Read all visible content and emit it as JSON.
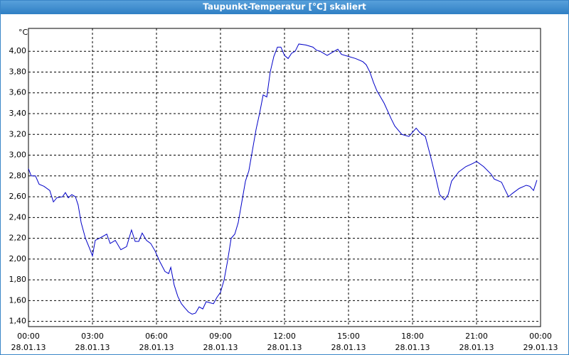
{
  "chart_data": {
    "type": "line",
    "title": "Taupunkt-Temperatur [°C] skaliert",
    "y_unit": "°C",
    "xlim": [
      0,
      24
    ],
    "xticks": [
      {
        "value": 0,
        "label": "00:00"
      },
      {
        "value": 3,
        "label": "03:00"
      },
      {
        "value": 6,
        "label": "06:00"
      },
      {
        "value": 9,
        "label": "09:00"
      },
      {
        "value": 12,
        "label": "12:00"
      },
      {
        "value": 15,
        "label": "15:00"
      },
      {
        "value": 18,
        "label": "18:00"
      },
      {
        "value": 21,
        "label": "21:00"
      },
      {
        "value": 24,
        "label": "00:00"
      }
    ],
    "xtick_dates": [
      "28.01.13",
      "28.01.13",
      "28.01.13",
      "28.01.13",
      "28.01.13",
      "28.01.13",
      "28.01.13",
      "28.01.13",
      "29.01.13"
    ],
    "ylim": [
      1.35,
      4.22
    ],
    "yticks": [
      {
        "value": 1.4,
        "label": "1,40"
      },
      {
        "value": 1.6,
        "label": "1,60"
      },
      {
        "value": 1.8,
        "label": "1,80"
      },
      {
        "value": 2.0,
        "label": "2,00"
      },
      {
        "value": 2.2,
        "label": "2,20"
      },
      {
        "value": 2.4,
        "label": "2,40"
      },
      {
        "value": 2.6,
        "label": "2,60"
      },
      {
        "value": 2.8,
        "label": "2,80"
      },
      {
        "value": 3.0,
        "label": "3,00"
      },
      {
        "value": 3.2,
        "label": "3,20"
      },
      {
        "value": 3.4,
        "label": "3,40"
      },
      {
        "value": 3.6,
        "label": "3,60"
      },
      {
        "value": 3.8,
        "label": "3,80"
      },
      {
        "value": 4.0,
        "label": "4,00"
      }
    ],
    "grid": true,
    "series": [
      {
        "color": "#0000c8",
        "x": [
          0,
          0.13,
          0.33,
          0.5,
          0.73,
          1,
          1.17,
          1.33,
          1.6,
          1.73,
          1.87,
          2.03,
          2.2,
          2.33,
          2.47,
          2.67,
          2.87,
          3,
          3.13,
          3.33,
          3.5,
          3.67,
          3.83,
          4.07,
          4.33,
          4.6,
          4.83,
          5,
          5.17,
          5.33,
          5.53,
          5.73,
          5.93,
          6.17,
          6.4,
          6.57,
          6.67,
          6.83,
          7,
          7.17,
          7.33,
          7.5,
          7.67,
          7.83,
          8,
          8.17,
          8.33,
          8.5,
          8.67,
          8.83,
          9,
          9.17,
          9.33,
          9.5,
          9.67,
          9.83,
          10,
          10.17,
          10.33,
          10.5,
          10.67,
          10.83,
          11,
          11.17,
          11.33,
          11.5,
          11.67,
          11.83,
          12,
          12.17,
          12.33,
          12.5,
          12.67,
          13,
          13.33,
          13.5,
          13.67,
          14,
          14.33,
          14.5,
          14.67,
          15,
          15.33,
          15.67,
          15.83,
          16,
          16.17,
          16.33,
          16.67,
          17,
          17.17,
          17.5,
          17.83,
          18,
          18.17,
          18.33,
          18.6,
          18.83,
          19.07,
          19.27,
          19.5,
          19.67,
          19.83,
          20.17,
          20.5,
          20.83,
          21,
          21.33,
          21.67,
          21.83,
          22.17,
          22.33,
          22.5,
          22.67,
          23,
          23.33,
          23.5,
          23.67,
          23.83
        ],
        "values": [
          2.87,
          2.8,
          2.8,
          2.72,
          2.7,
          2.66,
          2.55,
          2.59,
          2.6,
          2.64,
          2.59,
          2.62,
          2.6,
          2.52,
          2.35,
          2.2,
          2.1,
          2.03,
          2.18,
          2.2,
          2.22,
          2.24,
          2.15,
          2.18,
          2.09,
          2.12,
          2.28,
          2.17,
          2.17,
          2.25,
          2.18,
          2.15,
          2.08,
          1.97,
          1.88,
          1.86,
          1.92,
          1.75,
          1.64,
          1.57,
          1.53,
          1.49,
          1.47,
          1.48,
          1.54,
          1.52,
          1.59,
          1.58,
          1.57,
          1.63,
          1.68,
          1.8,
          1.98,
          2.2,
          2.24,
          2.35,
          2.55,
          2.75,
          2.85,
          3.05,
          3.25,
          3.4,
          3.58,
          3.56,
          3.8,
          3.95,
          4.04,
          4.04,
          3.96,
          3.93,
          3.98,
          4.0,
          4.07,
          4.06,
          4.04,
          4.01,
          4.0,
          3.96,
          4.0,
          4.02,
          3.97,
          3.95,
          3.93,
          3.9,
          3.87,
          3.8,
          3.7,
          3.62,
          3.5,
          3.35,
          3.28,
          3.2,
          3.18,
          3.22,
          3.26,
          3.22,
          3.18,
          3.0,
          2.8,
          2.62,
          2.57,
          2.62,
          2.75,
          2.84,
          2.89,
          2.92,
          2.94,
          2.89,
          2.82,
          2.77,
          2.74,
          2.67,
          2.6,
          2.63,
          2.68,
          2.71,
          2.7,
          2.66,
          2.76
        ]
      }
    ]
  }
}
